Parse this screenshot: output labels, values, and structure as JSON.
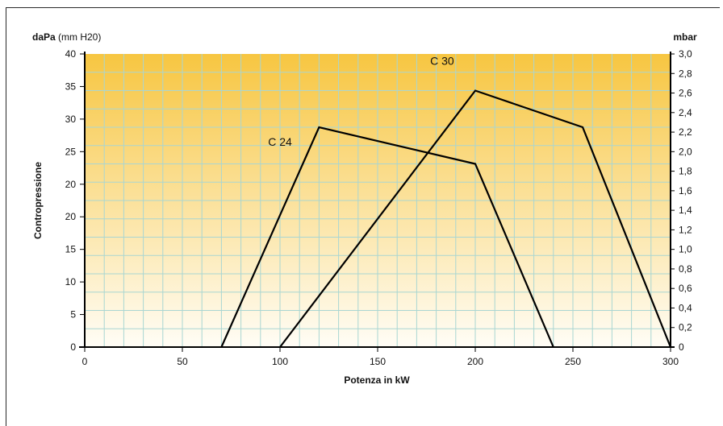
{
  "chart_data": {
    "type": "line",
    "xlabel": "Potenza in kW",
    "ylabel": "Contropressione",
    "left_unit_bold": "daPa",
    "left_unit_rest": " (mm H20)",
    "right_unit": "mbar",
    "xlim": [
      0,
      300
    ],
    "ylim": [
      0,
      40
    ],
    "x_ticks": [
      "0",
      "50",
      "100",
      "150",
      "200",
      "250",
      "300"
    ],
    "x_tick_values": [
      0,
      50,
      100,
      150,
      200,
      250,
      300
    ],
    "y_ticks_left": [
      "0",
      "5",
      "10",
      "15",
      "20",
      "20",
      "25",
      "30",
      "35",
      "40"
    ],
    "y_ticks_right": [
      "0",
      "0,2",
      "0,4",
      "0,6",
      "0,8",
      "1,0",
      "1,2",
      "1,4",
      "1,6",
      "1,8",
      "2,0",
      "2,2",
      "2,4",
      "2,6",
      "2,8",
      "3,0"
    ],
    "grid": true,
    "background_gradient": [
      "#f7c641",
      "#fffdf6"
    ],
    "series": [
      {
        "name": "C 24",
        "points": [
          [
            70,
            0
          ],
          [
            120,
            30
          ],
          [
            200,
            25
          ],
          [
            240,
            0
          ]
        ],
        "label_at": [
          100,
          27.5
        ]
      },
      {
        "name": "C 30",
        "points": [
          [
            100,
            0
          ],
          [
            200,
            35
          ],
          [
            255,
            30
          ],
          [
            300,
            0
          ]
        ],
        "label_at": [
          183,
          38.5
        ]
      }
    ]
  }
}
